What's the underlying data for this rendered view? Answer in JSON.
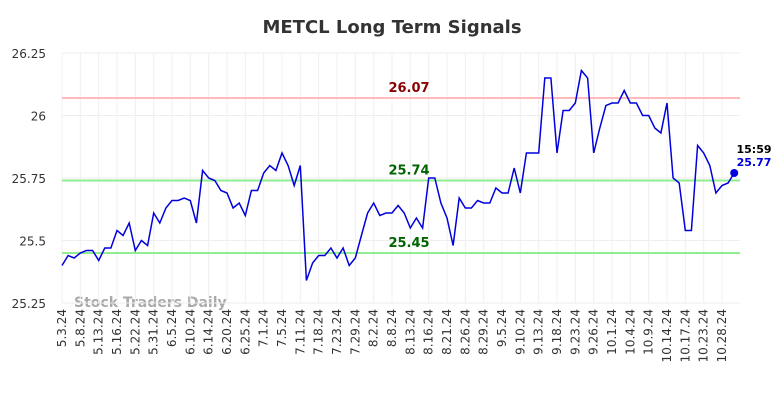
{
  "chart_data": {
    "type": "line",
    "title": "METCL Long Term Signals",
    "watermark": "Stock Traders Daily",
    "categories": [
      "5.3.24",
      null,
      null,
      "5.8.24",
      null,
      null,
      "5.13.24",
      null,
      null,
      "5.16.24",
      null,
      null,
      "5.22.24",
      null,
      null,
      "5.31.24",
      null,
      null,
      "6.5.24",
      null,
      null,
      "6.10.24",
      null,
      null,
      "6.14.24",
      null,
      null,
      "6.20.24",
      null,
      null,
      "6.25.24",
      null,
      null,
      "7.1.24",
      null,
      null,
      "7.5.24",
      null,
      null,
      "7.11.24",
      null,
      null,
      "7.18.24",
      null,
      null,
      "7.23.24",
      null,
      null,
      "7.29.24",
      null,
      null,
      "8.2.24",
      null,
      null,
      "8.8.24",
      null,
      null,
      "8.13.24",
      null,
      null,
      "8.16.24",
      null,
      null,
      "8.21.24",
      null,
      null,
      "8.26.24",
      null,
      null,
      "8.29.24",
      null,
      null,
      "9.5.24",
      null,
      null,
      "9.10.24",
      null,
      null,
      "9.13.24",
      null,
      null,
      "9.18.24",
      null,
      null,
      "9.23.24",
      null,
      null,
      "9.26.24",
      null,
      null,
      "10.1.24",
      null,
      null,
      "10.4.24",
      null,
      null,
      "10.9.24",
      null,
      null,
      "10.14.24",
      null,
      null,
      "10.17.24",
      null,
      null,
      "10.23.24",
      null,
      null,
      "10.28.24",
      null,
      null
    ],
    "series": [
      {
        "name": "METCL",
        "color": "#0000dd",
        "values": [
          25.4,
          25.44,
          25.43,
          25.45,
          25.46,
          25.46,
          25.42,
          25.47,
          25.47,
          25.54,
          25.52,
          25.57,
          25.46,
          25.5,
          25.48,
          25.61,
          25.57,
          25.63,
          25.66,
          25.66,
          25.67,
          25.66,
          25.57,
          25.78,
          25.75,
          25.74,
          25.7,
          25.69,
          25.63,
          25.65,
          25.6,
          25.7,
          25.7,
          25.77,
          25.8,
          25.78,
          25.85,
          25.8,
          25.72,
          25.8,
          25.34,
          25.41,
          25.44,
          25.44,
          25.47,
          25.43,
          25.47,
          25.4,
          25.43,
          25.52,
          25.61,
          25.65,
          25.6,
          25.61,
          25.61,
          25.64,
          25.61,
          25.55,
          25.59,
          25.55,
          25.75,
          25.75,
          25.65,
          25.59,
          25.48,
          25.67,
          25.63,
          25.63,
          25.66,
          25.65,
          25.65,
          25.71,
          25.69,
          25.69,
          25.79,
          25.69,
          25.85,
          25.85,
          25.85,
          26.15,
          26.15,
          25.85,
          26.02,
          26.02,
          26.05,
          26.18,
          26.15,
          25.85,
          25.95,
          26.04,
          26.05,
          26.05,
          26.1,
          26.05,
          26.05,
          26.0,
          26.0,
          25.95,
          25.93,
          26.05,
          25.75,
          25.73,
          25.54,
          25.54,
          25.88,
          25.85,
          25.8,
          25.69,
          25.72,
          25.73,
          25.77
        ]
      }
    ],
    "last_time": "15:59",
    "hlines": [
      {
        "value": 26.07,
        "color": "#ffbbbb",
        "label_color": "#8b0000"
      },
      {
        "value": 25.74,
        "color": "#90ee90",
        "label_color": "#006400"
      },
      {
        "value": 25.45,
        "color": "#90ee90",
        "label_color": "#006400"
      }
    ],
    "ylim": [
      25.25,
      26.25
    ],
    "yticks": [
      25.25,
      25.5,
      25.75,
      26,
      26.25
    ],
    "grid": true
  }
}
